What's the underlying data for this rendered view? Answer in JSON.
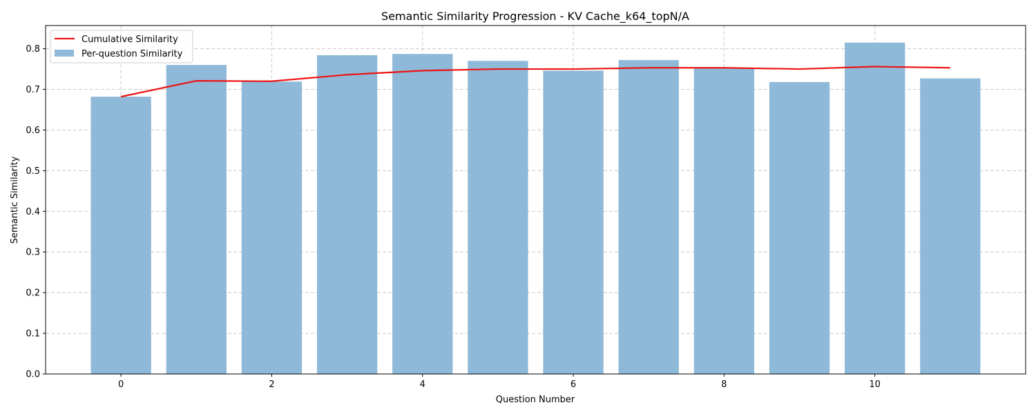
{
  "chart_data": {
    "type": "bar",
    "title": "Semantic Similarity Progression - KV Cache_k64_topN/A",
    "xlabel": "Question Number",
    "ylabel": "Semantic Similarity",
    "x": [
      0,
      1,
      2,
      3,
      4,
      5,
      6,
      7,
      8,
      9,
      10,
      11
    ],
    "xticks": [
      0,
      2,
      4,
      6,
      8,
      10
    ],
    "yticks": [
      0.0,
      0.1,
      0.2,
      0.3,
      0.4,
      0.5,
      0.6,
      0.7,
      0.8
    ],
    "ylim": [
      0.0,
      0.857
    ],
    "xlim": [
      -1.0,
      12.0
    ],
    "grid": true,
    "legend_position": "top-left",
    "series": [
      {
        "name": "Per-question Similarity",
        "kind": "bar",
        "color": "#8fb9d8",
        "values": [
          0.682,
          0.76,
          0.719,
          0.784,
          0.787,
          0.77,
          0.746,
          0.772,
          0.753,
          0.718,
          0.815,
          0.727
        ]
      },
      {
        "name": "Cumulative Similarity",
        "kind": "line",
        "color": "#ee1111",
        "values": [
          0.682,
          0.721,
          0.72,
          0.736,
          0.746,
          0.75,
          0.75,
          0.753,
          0.753,
          0.75,
          0.756,
          0.753
        ]
      }
    ]
  }
}
